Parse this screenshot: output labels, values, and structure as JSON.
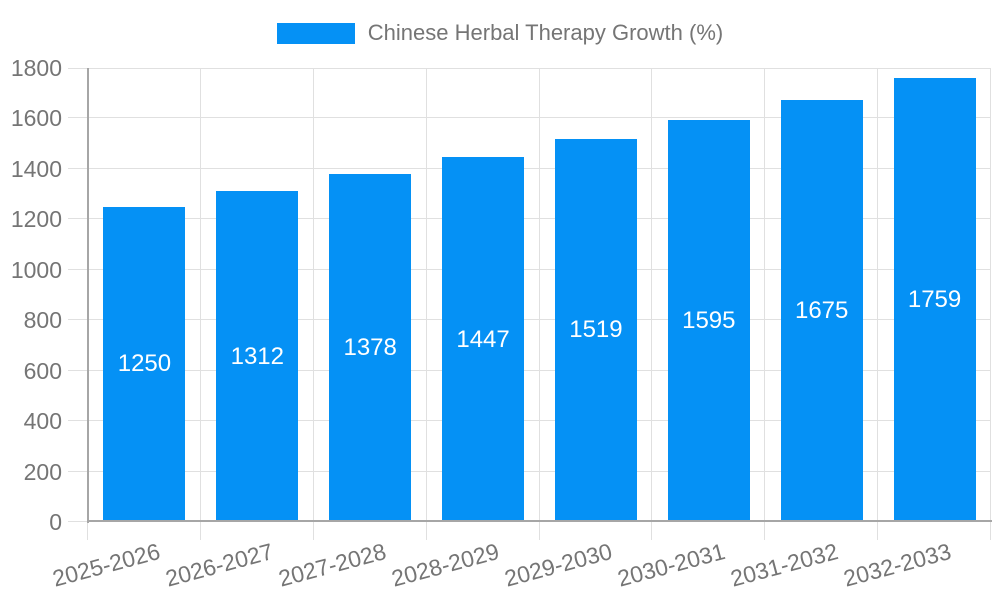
{
  "legend": {
    "label": "Chinese Herbal Therapy Growth (%)"
  },
  "chart_data": {
    "type": "bar",
    "title": "",
    "xlabel": "",
    "ylabel": "",
    "categories": [
      "2025-2026",
      "2026-2027",
      "2027-2028",
      "2028-2029",
      "2029-2030",
      "2030-2031",
      "2031-2032",
      "2032-2033"
    ],
    "values": [
      1250,
      1312,
      1378,
      1447,
      1519,
      1595,
      1675,
      1759
    ],
    "series_name": "Chinese Herbal Therapy Growth (%)",
    "ylim": [
      0,
      1800
    ],
    "yticks": [
      0,
      200,
      400,
      600,
      800,
      1000,
      1200,
      1400,
      1600,
      1800
    ],
    "grid": true,
    "legend_position": "top",
    "value_labels": "inside-center",
    "x_tick_rotation_deg": -15
  },
  "colors": {
    "bar": "#0591f5",
    "grid": "#e0e0e0",
    "axis": "#a6a6a6",
    "tick_text": "#757575",
    "legend_text": "#757575",
    "value_label_text": "#ffffff",
    "background": "#ffffff"
  }
}
